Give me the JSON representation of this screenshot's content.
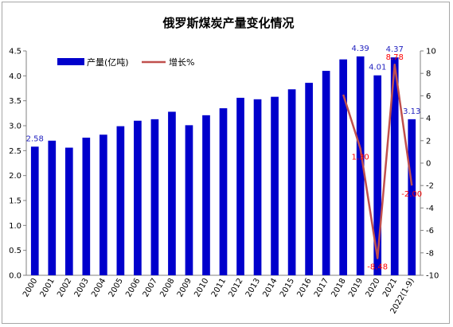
{
  "chart_data": {
    "type": "bar",
    "title": "俄罗斯煤炭产量变化情况",
    "categories": [
      "2000",
      "2001",
      "2002",
      "2003",
      "2004",
      "2005",
      "2006",
      "2007",
      "2008",
      "2009",
      "2010",
      "2011",
      "2012",
      "2013",
      "2014",
      "2015",
      "2016",
      "2017",
      "2018",
      "2019",
      "2020",
      "2021",
      "2022(1-9)"
    ],
    "series": [
      {
        "name": "产量(亿吨)",
        "type": "bar",
        "axis": "left",
        "color": "#0000cc",
        "values": [
          2.58,
          2.7,
          2.56,
          2.76,
          2.82,
          2.99,
          3.1,
          3.13,
          3.28,
          3.01,
          3.21,
          3.35,
          3.56,
          3.53,
          3.58,
          3.73,
          3.86,
          4.1,
          4.33,
          4.39,
          4.01,
          4.37,
          3.13
        ]
      },
      {
        "name": "增长%",
        "type": "line",
        "axis": "right",
        "color": "#c0504d",
        "values": [
          null,
          null,
          null,
          null,
          null,
          null,
          null,
          null,
          null,
          null,
          null,
          null,
          null,
          null,
          null,
          null,
          null,
          null,
          6.1,
          1.3,
          -8.48,
          8.78,
          -2.0
        ]
      }
    ],
    "bar_labels": [
      {
        "index": 0,
        "text": "2.58"
      },
      {
        "index": 19,
        "text": "4.39"
      },
      {
        "index": 20,
        "text": "4.01"
      },
      {
        "index": 21,
        "text": "4.37"
      },
      {
        "index": 22,
        "text": "3.13"
      }
    ],
    "line_labels": [
      {
        "index": 19,
        "text": "1.30"
      },
      {
        "index": 20,
        "text": "-8.48"
      },
      {
        "index": 21,
        "text": "8.78"
      },
      {
        "index": 22,
        "text": "-2.00"
      }
    ],
    "ylim_left": [
      0,
      4.5
    ],
    "yticks_left": [
      "0.0",
      "0.5",
      "1.0",
      "1.5",
      "2.0",
      "2.5",
      "3.0",
      "3.5",
      "4.0",
      "4.5"
    ],
    "ylim_right": [
      -10,
      10
    ],
    "yticks_right": [
      "-10",
      "-8",
      "-6",
      "-4",
      "-2",
      "0",
      "2",
      "4",
      "6",
      "8",
      "10"
    ],
    "xlabel": "",
    "ylabel_left": "",
    "ylabel_right": "",
    "grid": false,
    "legend_position": "top-left"
  }
}
